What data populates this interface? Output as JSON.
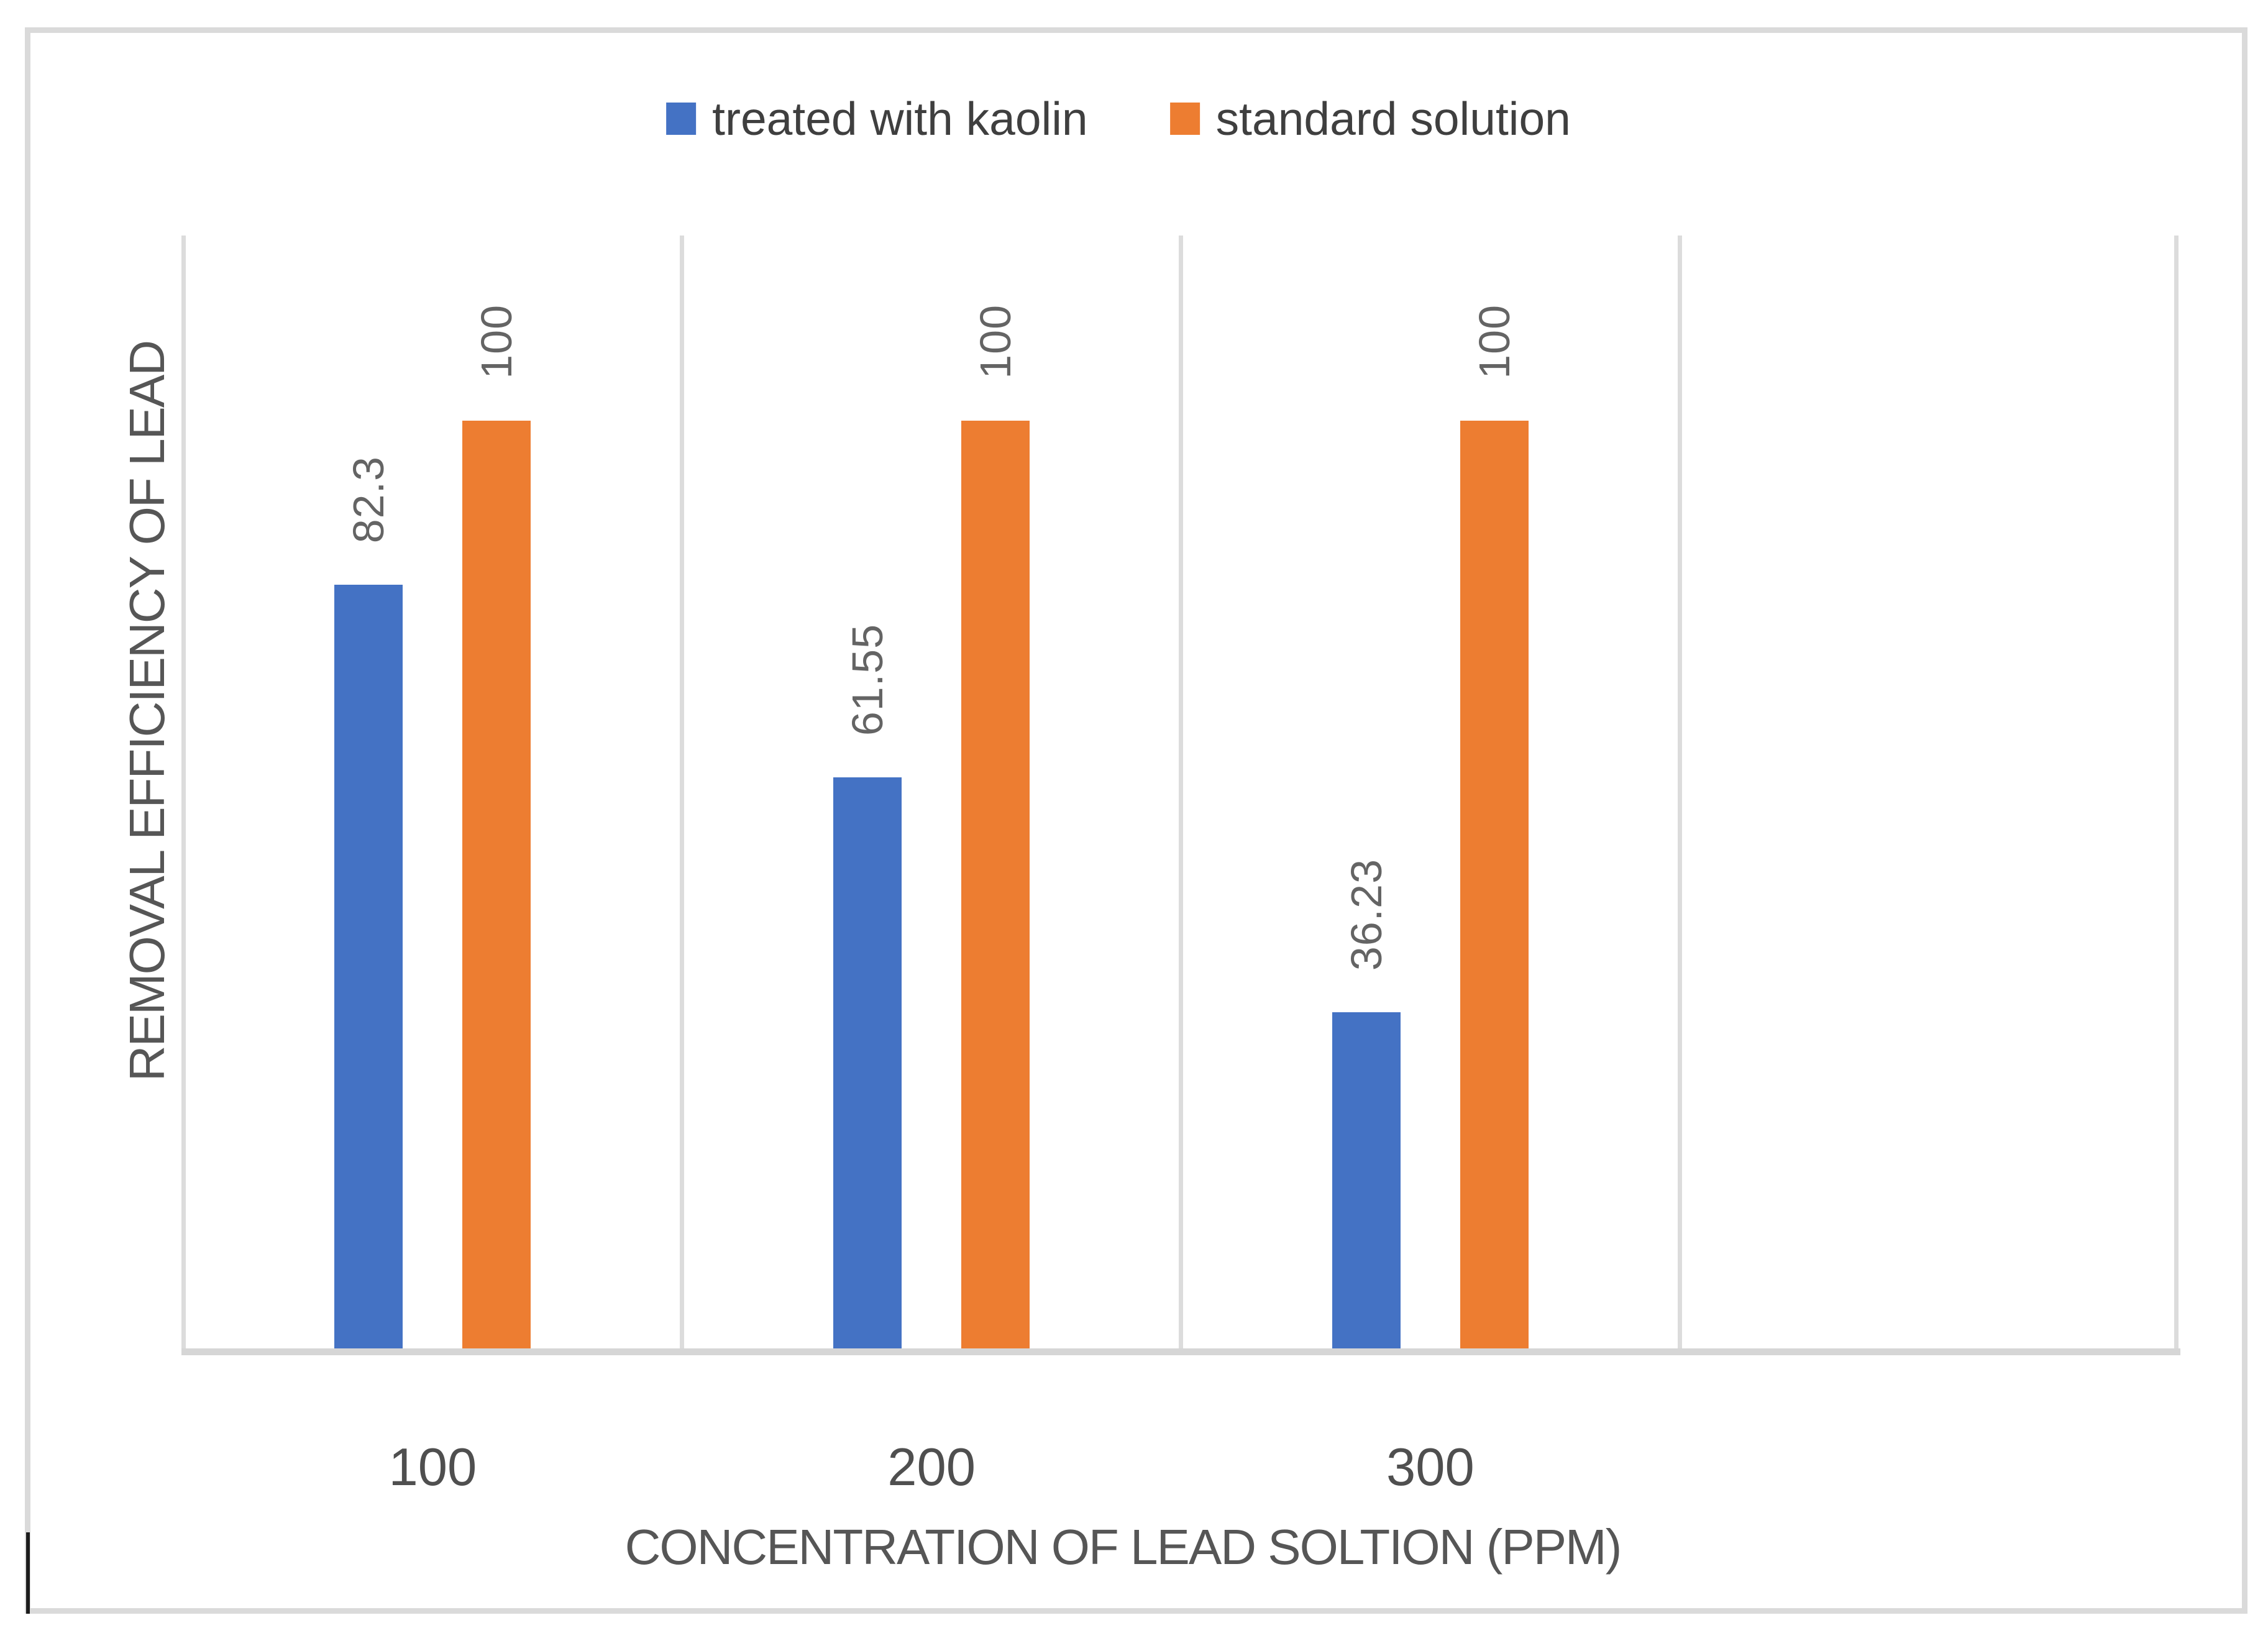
{
  "chart_data": {
    "type": "bar",
    "categories": [
      "100",
      "200",
      "300"
    ],
    "series": [
      {
        "name": "treated with kaolin",
        "color": "#4472C4",
        "values": [
          82.3,
          61.55,
          36.23
        ],
        "labels": [
          "82.3",
          "61.55",
          "36.23"
        ]
      },
      {
        "name": "standard solution",
        "color": "#ED7D31",
        "values": [
          100,
          100,
          100
        ],
        "labels": [
          "100",
          "100",
          "100"
        ]
      }
    ],
    "title": "",
    "xlabel": "CONCENTRATION OF LEAD SOLTION (PPM)",
    "ylabel": "REMOVAL EFFICIENCY OF LEAD",
    "ylim": [
      0,
      100
    ],
    "grid": "vertical-category-gridlines",
    "legend_position": "top-center",
    "data_label_rotation": 270,
    "x_tick_labels": [
      "100",
      "200",
      "300"
    ]
  },
  "legend": {
    "items": [
      {
        "label": "treated with kaolin",
        "color": "#4472C4"
      },
      {
        "label": "standard solution",
        "color": "#ED7D31"
      }
    ]
  },
  "axes": {
    "x_title": "CONCENTRATION OF LEAD SOLTION (PPM)",
    "y_title": "REMOVAL EFFICIENCY OF LEAD"
  },
  "colors": {
    "series_blue": "#4472C4",
    "series_orange": "#ED7D31",
    "gridline": "#dcdcdc",
    "axis_line": "#d6d6d6",
    "outer_border": "#dadada",
    "data_label_text": "#646464",
    "tick_text": "#4f4f4f",
    "title_text": "#565656",
    "legend_text": "#3f3f3f"
  }
}
